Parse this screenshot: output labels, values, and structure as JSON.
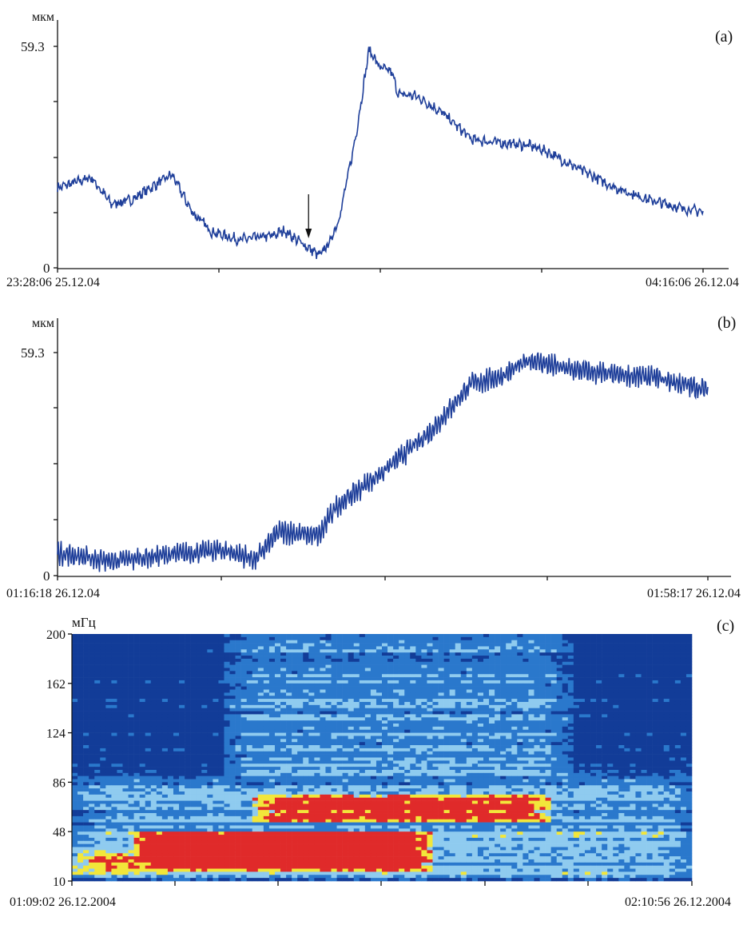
{
  "chart_data": [
    {
      "type": "line",
      "panel_label": "(a)",
      "ylabel": "мкм",
      "ytick_labels": [
        "59.3",
        "0"
      ],
      "ylim": [
        0,
        59.3
      ],
      "x_unit": "minutes since start",
      "xlim": [
        0,
        288
      ],
      "xtick_start_label": "23:28:06 25.12.04",
      "xtick_end_label": "04:16:06 26.12.04",
      "line_color": "#1f3f9a",
      "annotation": "arrow marking event onset at ~112 min",
      "arrow_x": 112,
      "points": [
        [
          0,
          21.4
        ],
        [
          15,
          24.2
        ],
        [
          24,
          17.1
        ],
        [
          33,
          18.2
        ],
        [
          51,
          25
        ],
        [
          60,
          15
        ],
        [
          69,
          9.6
        ],
        [
          81,
          7.5
        ],
        [
          96,
          8.6
        ],
        [
          101,
          10
        ],
        [
          112,
          5.3
        ],
        [
          117,
          3.2
        ],
        [
          122,
          7.5
        ],
        [
          126,
          14
        ],
        [
          133,
          35
        ],
        [
          139,
          58.5
        ],
        [
          144,
          53.5
        ],
        [
          149,
          52.5
        ],
        [
          152,
          46.5
        ],
        [
          160,
          46
        ],
        [
          171,
          41.8
        ],
        [
          185,
          34.3
        ],
        [
          196,
          33.6
        ],
        [
          210,
          32.8
        ],
        [
          217,
          31.5
        ],
        [
          235,
          25.7
        ],
        [
          249,
          21.4
        ],
        [
          264,
          18.2
        ],
        [
          278,
          16
        ],
        [
          288,
          15
        ]
      ]
    },
    {
      "type": "line",
      "panel_label": "(b)",
      "ylabel": "мкм",
      "ytick_labels": [
        "59.3",
        "0"
      ],
      "ylim": [
        0,
        59.3
      ],
      "x_unit": "minutes since start",
      "xlim": [
        0,
        42
      ],
      "xtick_start_label": "01:16:18 26.12.04",
      "xtick_end_label": "01:58:17 26.12.04",
      "line_color": "#1f3f9a",
      "points": [
        [
          0,
          6
        ],
        [
          3.5,
          3.8
        ],
        [
          6.6,
          5.3
        ],
        [
          10.7,
          6.8
        ],
        [
          12.8,
          4.3
        ],
        [
          14.3,
          11.7
        ],
        [
          16.9,
          10.6
        ],
        [
          17.9,
          18
        ],
        [
          21,
          27.6
        ],
        [
          24.1,
          38.3
        ],
        [
          26.7,
          51
        ],
        [
          28.7,
          53
        ],
        [
          30.5,
          57.4
        ],
        [
          32.8,
          55
        ],
        [
          35.4,
          53.6
        ],
        [
          38.5,
          52.7
        ],
        [
          42,
          49.3
        ]
      ]
    },
    {
      "type": "heatmap",
      "panel_label": "(c)",
      "ylabel": "мГц",
      "ytick_labels": [
        "200",
        "162",
        "124",
        "86",
        "48",
        "10"
      ],
      "ylim": [
        10,
        200
      ],
      "x_unit": "minutes since start",
      "xlim": [
        0,
        62
      ],
      "xtick_start_label": "01:09:02 26.12.2004",
      "xtick_end_label": "02:10:56 26.12.2004",
      "colormap": [
        "#123c98",
        "#2a78cc",
        "#8fcbef",
        "#f2e63a",
        "#e02a2a"
      ],
      "intensity_regions": [
        {
          "t": [
            6,
            36
          ],
          "f": [
            18,
            48
          ],
          "level": 1.0
        },
        {
          "t": [
            18,
            48
          ],
          "f": [
            55,
            76
          ],
          "level": 0.95
        },
        {
          "t": [
            0,
            10
          ],
          "f": [
            15,
            35
          ],
          "level": 0.8
        },
        {
          "t": [
            15,
            50
          ],
          "f": [
            86,
            200
          ],
          "level": 0.45
        },
        {
          "t": [
            0,
            62
          ],
          "f": [
            10,
            90
          ],
          "level": 0.5
        }
      ]
    }
  ]
}
